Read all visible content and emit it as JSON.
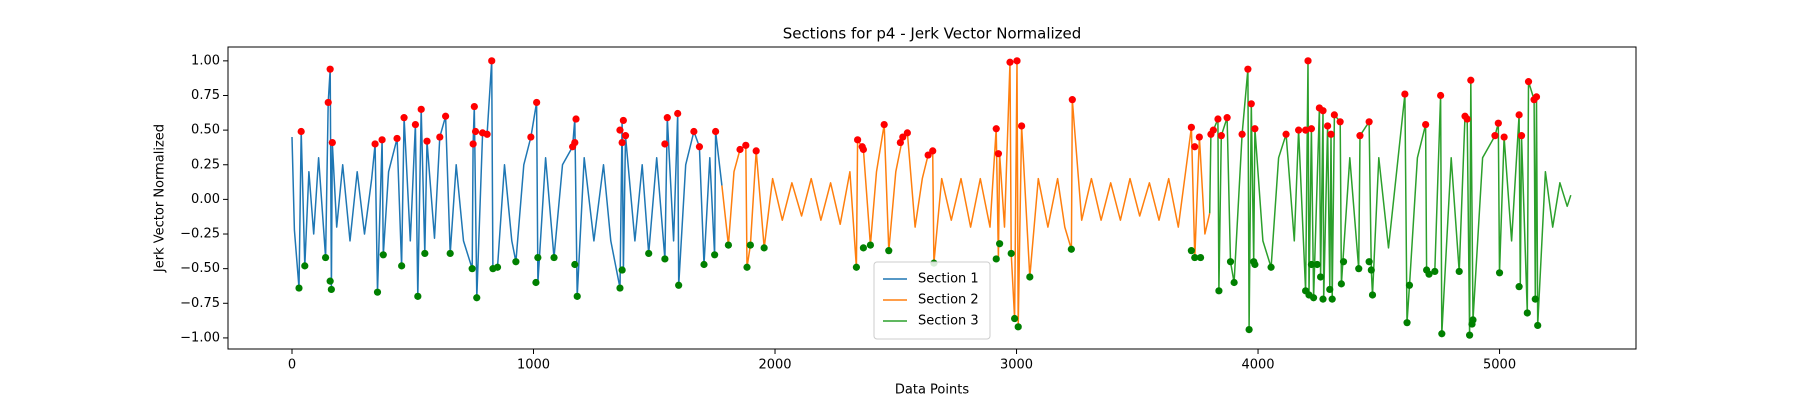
{
  "chart_data": {
    "type": "line",
    "title": "Sections for p4 - Jerk Vector Normalized",
    "x_label": "Data Points",
    "y_label": "Jerk Vector Normalized",
    "xlim": [
      -265,
      5565
    ],
    "ylim": [
      -1.08,
      1.1
    ],
    "xticks": [
      0,
      1000,
      2000,
      3000,
      4000,
      5000
    ],
    "yticks": [
      {
        "value": -1.0,
        "label": "−1.00"
      },
      {
        "value": -0.75,
        "label": "−0.75"
      },
      {
        "value": -0.5,
        "label": "−0.50"
      },
      {
        "value": -0.25,
        "label": "−0.25"
      },
      {
        "value": 0,
        "label": "0.00"
      },
      {
        "value": 0.25,
        "label": "0.25"
      },
      {
        "value": 0.5,
        "label": "0.50"
      },
      {
        "value": 0.75,
        "label": "0.75"
      },
      {
        "value": 1.0,
        "label": "1.00"
      }
    ],
    "grid": false,
    "legend": "lower center",
    "series": [
      {
        "name": "Section 1",
        "type": "line",
        "color": "#1f77b4",
        "x": [
          0,
          10,
          29,
          38,
          53,
          70,
          90,
          110,
          139,
          150,
          158,
          163,
          167,
          185,
          210,
          240,
          270,
          300,
          330,
          344,
          354,
          373,
          378,
          400,
          435,
          454,
          464,
          490,
          511,
          521,
          535,
          550,
          559,
          590,
          612,
          636,
          655,
          680,
          710,
          746,
          750,
          755,
          765,
          789,
          808,
          827,
          832,
          851,
          880,
          910,
          927,
          960,
          989,
          1013,
          1018,
          1050,
          1085,
          1120,
          1162,
          1171,
          1181,
          1210,
          1250,
          1290,
          1320,
          1358,
          1367,
          1372,
          1381,
          1420,
          1450,
          1477,
          1510,
          1544,
          1554,
          1580,
          1597,
          1601,
          1630,
          1664,
          1687,
          1706,
          1730,
          1750,
          1754,
          1780
        ],
        "values": [
          0.45,
          -0.22,
          -0.64,
          0.49,
          -0.48,
          0.2,
          -0.25,
          0.3,
          -0.42,
          0.7,
          0.94,
          -0.65,
          0.41,
          -0.2,
          0.25,
          -0.3,
          0.2,
          -0.25,
          0.15,
          0.4,
          -0.67,
          0.43,
          -0.4,
          0.2,
          0.44,
          -0.48,
          0.59,
          -0.3,
          0.54,
          -0.7,
          0.65,
          -0.39,
          0.42,
          -0.28,
          0.45,
          0.6,
          -0.39,
          0.25,
          -0.3,
          -0.5,
          0.4,
          0.67,
          -0.71,
          0.48,
          0.47,
          1.0,
          -0.5,
          -0.49,
          0.25,
          -0.3,
          -0.45,
          0.25,
          0.45,
          0.7,
          -0.6,
          0.3,
          -0.42,
          0.25,
          0.38,
          0.58,
          -0.7,
          0.3,
          -0.3,
          0.25,
          -0.3,
          -0.64,
          0.57,
          -0.51,
          0.46,
          -0.3,
          0.25,
          -0.39,
          0.3,
          -0.43,
          0.59,
          -0.3,
          0.62,
          -0.62,
          0.25,
          0.49,
          0.38,
          -0.47,
          0.3,
          -0.4,
          0.49,
          0.1
        ]
      },
      {
        "name": "Section 2",
        "type": "line",
        "color": "#ff7f0e",
        "x": [
          1780,
          1807,
          1830,
          1855,
          1879,
          1884,
          1898,
          1922,
          1955,
          1990,
          2030,
          2070,
          2110,
          2150,
          2190,
          2230,
          2270,
          2310,
          2337,
          2342,
          2366,
          2395,
          2420,
          2452,
          2471,
          2500,
          2529,
          2548,
          2580,
          2610,
          2634,
          2653,
          2658,
          2690,
          2730,
          2770,
          2810,
          2850,
          2890,
          2916,
          2925,
          2930,
          2950,
          2973,
          2978,
          2992,
          3002,
          3007,
          3021,
          3055,
          3090,
          3130,
          3170,
          3200,
          3227,
          3231,
          3270,
          3310,
          3350,
          3390,
          3430,
          3470,
          3510,
          3550,
          3590,
          3630,
          3670,
          3700,
          3724,
          3738,
          3757,
          3780,
          3800
        ],
        "values": [
          0.1,
          -0.33,
          0.2,
          0.36,
          0.39,
          -0.49,
          -0.33,
          0.35,
          -0.35,
          0.15,
          -0.15,
          0.12,
          -0.12,
          0.15,
          -0.15,
          0.12,
          -0.18,
          0.2,
          -0.49,
          0.43,
          0.36,
          -0.33,
          0.2,
          0.54,
          -0.37,
          0.2,
          0.45,
          0.48,
          -0.2,
          0.15,
          0.32,
          0.35,
          -0.46,
          0.15,
          -0.15,
          0.15,
          -0.2,
          0.15,
          -0.2,
          0.51,
          -0.43,
          0.33,
          -0.2,
          0.99,
          -0.39,
          -0.86,
          1.0,
          -0.92,
          0.53,
          -0.56,
          0.15,
          -0.2,
          0.15,
          -0.2,
          -0.36,
          0.72,
          -0.15,
          0.15,
          -0.15,
          0.12,
          -0.15,
          0.15,
          -0.12,
          0.12,
          -0.15,
          0.15,
          -0.2,
          0.2,
          0.52,
          -0.42,
          0.45,
          -0.25,
          -0.1
        ]
      },
      {
        "name": "Section 3",
        "type": "line",
        "color": "#2ca02c",
        "x": [
          3800,
          3805,
          3815,
          3834,
          3838,
          3848,
          3872,
          3886,
          3901,
          3934,
          3958,
          3963,
          3972,
          3982,
          3987,
          4020,
          4054,
          4085,
          4116,
          4150,
          4168,
          4197,
          4207,
          4211,
          4221,
          4230,
          4254,
          4259,
          4269,
          4272,
          4288,
          4297,
          4302,
          4307,
          4316,
          4340,
          4345,
          4380,
          4417,
          4422,
          4460,
          4469,
          4474,
          4500,
          4540,
          4580,
          4608,
          4617,
          4627,
          4660,
          4694,
          4698,
          4708,
          4732,
          4756,
          4761,
          4800,
          4833,
          4857,
          4866,
          4876,
          4881,
          4890,
          4930,
          4981,
          4995,
          5000,
          5019,
          5050,
          5081,
          5086,
          5091,
          5115,
          5120,
          5143,
          5148,
          5153,
          5158,
          5190,
          5220,
          5250,
          5280,
          5295
        ],
        "values": [
          -0.1,
          0.47,
          0.5,
          0.58,
          -0.66,
          0.46,
          0.59,
          -0.45,
          -0.6,
          0.47,
          0.94,
          -0.94,
          0.69,
          -0.45,
          0.51,
          -0.3,
          -0.49,
          0.3,
          0.47,
          -0.3,
          0.5,
          -0.66,
          1.0,
          -0.69,
          0.51,
          -0.71,
          0.66,
          -0.56,
          0.64,
          -0.72,
          0.53,
          -0.65,
          0.47,
          -0.72,
          0.61,
          0.56,
          -0.61,
          0.3,
          -0.5,
          0.46,
          0.56,
          -0.51,
          -0.69,
          0.3,
          -0.35,
          0.3,
          0.76,
          -0.89,
          -0.62,
          0.3,
          0.54,
          -0.51,
          -0.54,
          -0.52,
          0.75,
          -0.97,
          0.3,
          -0.52,
          0.6,
          0.58,
          -0.98,
          0.86,
          -0.87,
          0.3,
          0.46,
          0.55,
          -0.53,
          0.45,
          -0.3,
          0.61,
          -0.63,
          0.46,
          -0.82,
          0.85,
          0.72,
          -0.72,
          0.74,
          -0.91,
          0.2,
          -0.2,
          0.12,
          -0.05,
          0.03
        ]
      },
      {
        "type": "scatter",
        "color": "#ff0000",
        "x": [
          38,
          150,
          158,
          167,
          344,
          373,
          435,
          464,
          511,
          535,
          559,
          612,
          636,
          750,
          755,
          760,
          789,
          808,
          827,
          989,
          1013,
          1162,
          1171,
          1176,
          1358,
          1367,
          1372,
          1381,
          1544,
          1554,
          1597,
          1664,
          1687,
          1754,
          1855,
          1879,
          1922,
          2342,
          2361,
          2366,
          2452,
          2519,
          2529,
          2548,
          2634,
          2653,
          2916,
          2925,
          2973,
          3002,
          3021,
          3231,
          3724,
          3738,
          3757,
          3805,
          3815,
          3834,
          3848,
          3872,
          3934,
          3958,
          3972,
          3987,
          4116,
          4168,
          4197,
          4207,
          4221,
          4254,
          4269,
          4288,
          4302,
          4316,
          4340,
          4422,
          4460,
          4608,
          4694,
          4756,
          4857,
          4866,
          4881,
          4981,
          4995,
          5019,
          5081,
          5091,
          5120,
          5143,
          5153
        ],
        "values": [
          0.49,
          0.7,
          0.94,
          0.41,
          0.4,
          0.43,
          0.44,
          0.59,
          0.54,
          0.65,
          0.42,
          0.45,
          0.6,
          0.4,
          0.67,
          0.49,
          0.48,
          0.47,
          1.0,
          0.45,
          0.7,
          0.38,
          0.41,
          0.58,
          0.5,
          0.41,
          0.57,
          0.46,
          0.4,
          0.59,
          0.62,
          0.49,
          0.38,
          0.49,
          0.36,
          0.39,
          0.35,
          0.43,
          0.38,
          0.36,
          0.54,
          0.41,
          0.45,
          0.48,
          0.32,
          0.35,
          0.51,
          0.33,
          0.99,
          1.0,
          0.53,
          0.72,
          0.52,
          0.38,
          0.45,
          0.47,
          0.5,
          0.58,
          0.46,
          0.59,
          0.47,
          0.94,
          0.69,
          0.51,
          0.47,
          0.5,
          0.5,
          1.0,
          0.51,
          0.66,
          0.64,
          0.53,
          0.47,
          0.61,
          0.56,
          0.46,
          0.56,
          0.76,
          0.54,
          0.75,
          0.6,
          0.58,
          0.86,
          0.46,
          0.55,
          0.45,
          0.61,
          0.46,
          0.85,
          0.72,
          0.74
        ]
      },
      {
        "type": "scatter",
        "color": "#008000",
        "x": [
          29,
          53,
          139,
          158,
          163,
          354,
          378,
          454,
          521,
          550,
          655,
          746,
          765,
          832,
          851,
          927,
          1010,
          1018,
          1085,
          1171,
          1181,
          1358,
          1367,
          1477,
          1544,
          1601,
          1706,
          1750,
          1807,
          1884,
          1898,
          1955,
          2337,
          2366,
          2395,
          2471,
          2658,
          2916,
          2930,
          2978,
          2992,
          3007,
          3055,
          3227,
          3724,
          3738,
          3762,
          3838,
          3886,
          3901,
          3963,
          3982,
          3987,
          4054,
          4197,
          4211,
          4221,
          4230,
          4245,
          4259,
          4269,
          4297,
          4307,
          4345,
          4354,
          4417,
          4460,
          4469,
          4474,
          4617,
          4627,
          4698,
          4708,
          4732,
          4761,
          4833,
          4876,
          4886,
          4890,
          5000,
          5081,
          5115,
          5148,
          5158
        ],
        "values": [
          -0.64,
          -0.48,
          -0.42,
          -0.59,
          -0.65,
          -0.67,
          -0.4,
          -0.48,
          -0.7,
          -0.39,
          -0.39,
          -0.5,
          -0.71,
          -0.5,
          -0.49,
          -0.45,
          -0.6,
          -0.42,
          -0.42,
          -0.47,
          -0.7,
          -0.64,
          -0.51,
          -0.39,
          -0.43,
          -0.62,
          -0.47,
          -0.4,
          -0.33,
          -0.49,
          -0.33,
          -0.35,
          -0.49,
          -0.35,
          -0.33,
          -0.37,
          -0.46,
          -0.43,
          -0.32,
          -0.39,
          -0.86,
          -0.92,
          -0.56,
          -0.36,
          -0.37,
          -0.42,
          -0.42,
          -0.66,
          -0.45,
          -0.6,
          -0.94,
          -0.45,
          -0.47,
          -0.49,
          -0.66,
          -0.69,
          -0.47,
          -0.71,
          -0.47,
          -0.56,
          -0.72,
          -0.65,
          -0.72,
          -0.61,
          -0.45,
          -0.5,
          -0.45,
          -0.51,
          -0.69,
          -0.89,
          -0.62,
          -0.51,
          -0.54,
          -0.52,
          -0.97,
          -0.52,
          -0.98,
          -0.9,
          -0.87,
          -0.53,
          -0.63,
          -0.82,
          -0.72,
          -0.91
        ]
      }
    ]
  }
}
